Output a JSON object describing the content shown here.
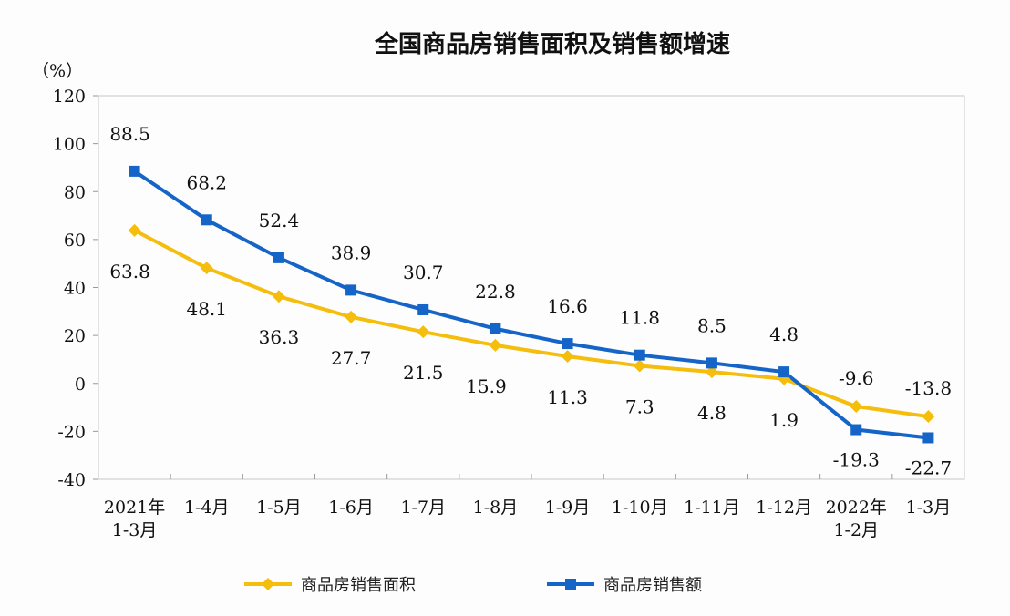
{
  "chart_data": {
    "type": "line",
    "title": "全国商品房销售面积及销售额增速",
    "ylabel": "（%）",
    "ylim": [
      -40,
      120
    ],
    "yticks": [
      120,
      100,
      80,
      60,
      40,
      20,
      0,
      -20,
      -40
    ],
    "grid": false,
    "legend": "bottom",
    "categories": [
      [
        "2021年",
        "1-3月"
      ],
      [
        "1-4月"
      ],
      [
        "1-5月"
      ],
      [
        "1-6月"
      ],
      [
        "1-7月"
      ],
      [
        "1-8月"
      ],
      [
        "1-9月"
      ],
      [
        "1-10月"
      ],
      [
        "1-11月"
      ],
      [
        "1-12月"
      ],
      [
        "2022年",
        "1-2月"
      ],
      [
        "1-3月"
      ]
    ],
    "series": [
      {
        "name": "商品房销售面积",
        "color": "#f5bd0c",
        "marker": "diamond",
        "values": [
          63.8,
          48.1,
          36.3,
          27.7,
          21.5,
          15.9,
          11.3,
          7.3,
          4.8,
          1.9,
          -9.6,
          -13.8
        ]
      },
      {
        "name": "商品房销售额",
        "color": "#1565c8",
        "marker": "square",
        "values": [
          88.5,
          68.2,
          52.4,
          38.9,
          30.7,
          22.8,
          16.6,
          11.8,
          8.5,
          4.8,
          -19.3,
          -22.7
        ]
      }
    ]
  }
}
